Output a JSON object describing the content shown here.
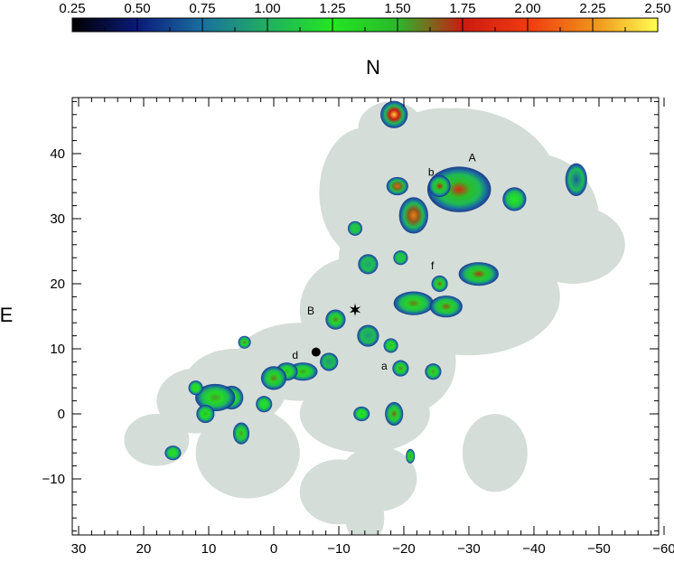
{
  "chart_data": {
    "type": "heatmap",
    "title": "",
    "xlabel": "",
    "ylabel": "E",
    "top_label": "N",
    "xlim": [
      30,
      -60
    ],
    "ylim": [
      -18,
      48
    ],
    "x_ticks": [
      30,
      20,
      10,
      0,
      -10,
      -20,
      -30,
      -40,
      -50,
      -60
    ],
    "y_ticks": [
      -10,
      0,
      10,
      20,
      30,
      40
    ],
    "x_tick_labels": [
      "30",
      "20",
      "10",
      "0",
      "−10",
      "−20",
      "−30",
      "−40",
      "−50",
      "−60"
    ],
    "y_tick_labels": [
      "−10",
      "0",
      "10",
      "20",
      "30",
      "40"
    ],
    "colorbar": {
      "min": 0.25,
      "max": 2.5,
      "ticks": [
        0.25,
        0.5,
        0.75,
        1.0,
        1.25,
        1.5,
        1.75,
        2.0,
        2.25,
        2.5
      ],
      "tick_labels": [
        "0.25",
        "0.50",
        "0.75",
        "1.00",
        "1.25",
        "1.50",
        "1.75",
        "2.00",
        "2.25",
        "2.50"
      ],
      "colors": [
        "#000000",
        "#0a1a7a",
        "#1a6fa0",
        "#20b060",
        "#22e622",
        "#2bb82b",
        "#cc1a10",
        "#f03a10",
        "#f0901a",
        "#ffff50"
      ]
    },
    "background_color": "#d4ddd8",
    "clumps": [
      {
        "x": -18.5,
        "y": 46,
        "w": 1.5,
        "h": 1.5,
        "v": 2.4
      },
      {
        "x": -28.5,
        "y": 34.5,
        "w": 3.5,
        "h": 2.5,
        "v": 1.85
      },
      {
        "x": -25.5,
        "y": 35,
        "w": 1.2,
        "h": 1.2,
        "v": 1.75
      },
      {
        "x": -37,
        "y": 33,
        "w": 1.3,
        "h": 1.3,
        "v": 1.25
      },
      {
        "x": -46.5,
        "y": 36,
        "w": 1.2,
        "h": 1.8,
        "v": 0.7
      },
      {
        "x": -19,
        "y": 35,
        "w": 1.2,
        "h": 1,
        "v": 2.1
      },
      {
        "x": -21.5,
        "y": 30.5,
        "w": 1.6,
        "h": 2,
        "v": 2.2
      },
      {
        "x": -12.5,
        "y": 28.5,
        "w": 0.8,
        "h": 0.8,
        "v": 1.1
      },
      {
        "x": -14.5,
        "y": 23,
        "w": 1.1,
        "h": 1.1,
        "v": 0.95
      },
      {
        "x": -19.5,
        "y": 24,
        "w": 0.8,
        "h": 0.8,
        "v": 1.1
      },
      {
        "x": -25.5,
        "y": 20,
        "w": 0.9,
        "h": 0.9,
        "v": 1.65
      },
      {
        "x": -31.5,
        "y": 21.5,
        "w": 2.2,
        "h": 1.3,
        "v": 1.7
      },
      {
        "x": -21.5,
        "y": 17,
        "w": 2.2,
        "h": 1.3,
        "v": 1.6
      },
      {
        "x": -26.5,
        "y": 16.5,
        "w": 1.8,
        "h": 1.2,
        "v": 1.65
      },
      {
        "x": -9.5,
        "y": 14.5,
        "w": 1.1,
        "h": 1.1,
        "v": 1.6
      },
      {
        "x": -14.5,
        "y": 12,
        "w": 1.2,
        "h": 1.2,
        "v": 0.9
      },
      {
        "x": -18,
        "y": 10.5,
        "w": 0.8,
        "h": 0.8,
        "v": 1.5
      },
      {
        "x": -19.5,
        "y": 7,
        "w": 0.9,
        "h": 0.9,
        "v": 1.6
      },
      {
        "x": -24.5,
        "y": 6.5,
        "w": 0.9,
        "h": 0.9,
        "v": 1.55
      },
      {
        "x": -8.5,
        "y": 8,
        "w": 1,
        "h": 1,
        "v": 0.9
      },
      {
        "x": -4.5,
        "y": 6.5,
        "w": 1.6,
        "h": 1,
        "v": 1.55
      },
      {
        "x": -2,
        "y": 6.5,
        "w": 1.2,
        "h": 1,
        "v": 1.5
      },
      {
        "x": 0,
        "y": 5.5,
        "w": 1.4,
        "h": 1.3,
        "v": 1.6
      },
      {
        "x": 1.5,
        "y": 1.5,
        "w": 0.9,
        "h": 0.9,
        "v": 1.3
      },
      {
        "x": 4.5,
        "y": 11,
        "w": 0.7,
        "h": 0.7,
        "v": 1.6
      },
      {
        "x": 6.5,
        "y": 2.5,
        "w": 1.3,
        "h": 1.3,
        "v": 1.5
      },
      {
        "x": 9,
        "y": 2.5,
        "w": 2.2,
        "h": 1.5,
        "v": 1.55
      },
      {
        "x": 10.5,
        "y": 0,
        "w": 1,
        "h": 1,
        "v": 1.5
      },
      {
        "x": 12,
        "y": 4,
        "w": 0.8,
        "h": 0.8,
        "v": 1.4
      },
      {
        "x": 5,
        "y": -3,
        "w": 0.9,
        "h": 1.2,
        "v": 1.55
      },
      {
        "x": 15.5,
        "y": -6,
        "w": 0.9,
        "h": 0.8,
        "v": 1.3
      },
      {
        "x": -13.5,
        "y": 0,
        "w": 0.9,
        "h": 0.8,
        "v": 1.4
      },
      {
        "x": -18.5,
        "y": 0,
        "w": 1,
        "h": 1.3,
        "v": 1.65
      },
      {
        "x": -21,
        "y": -6.5,
        "w": 0.5,
        "h": 0.8,
        "v": 1.55
      }
    ],
    "annotations": [
      {
        "text": "A",
        "x": -30.5,
        "y": 38.8
      },
      {
        "text": "b",
        "x": -24.2,
        "y": 36.6
      },
      {
        "text": "f",
        "x": -24.4,
        "y": 22.2
      },
      {
        "text": "B",
        "x": -5.7,
        "y": 15.3
      },
      {
        "text": "d",
        "x": -3.3,
        "y": 8.5
      },
      {
        "text": "a",
        "x": -17.0,
        "y": 6.8
      }
    ],
    "markers": [
      {
        "shape": "star",
        "x": -12.5,
        "y": 16
      },
      {
        "shape": "dot",
        "x": -6.5,
        "y": 9.5
      }
    ],
    "grid": false,
    "legend": "none"
  }
}
